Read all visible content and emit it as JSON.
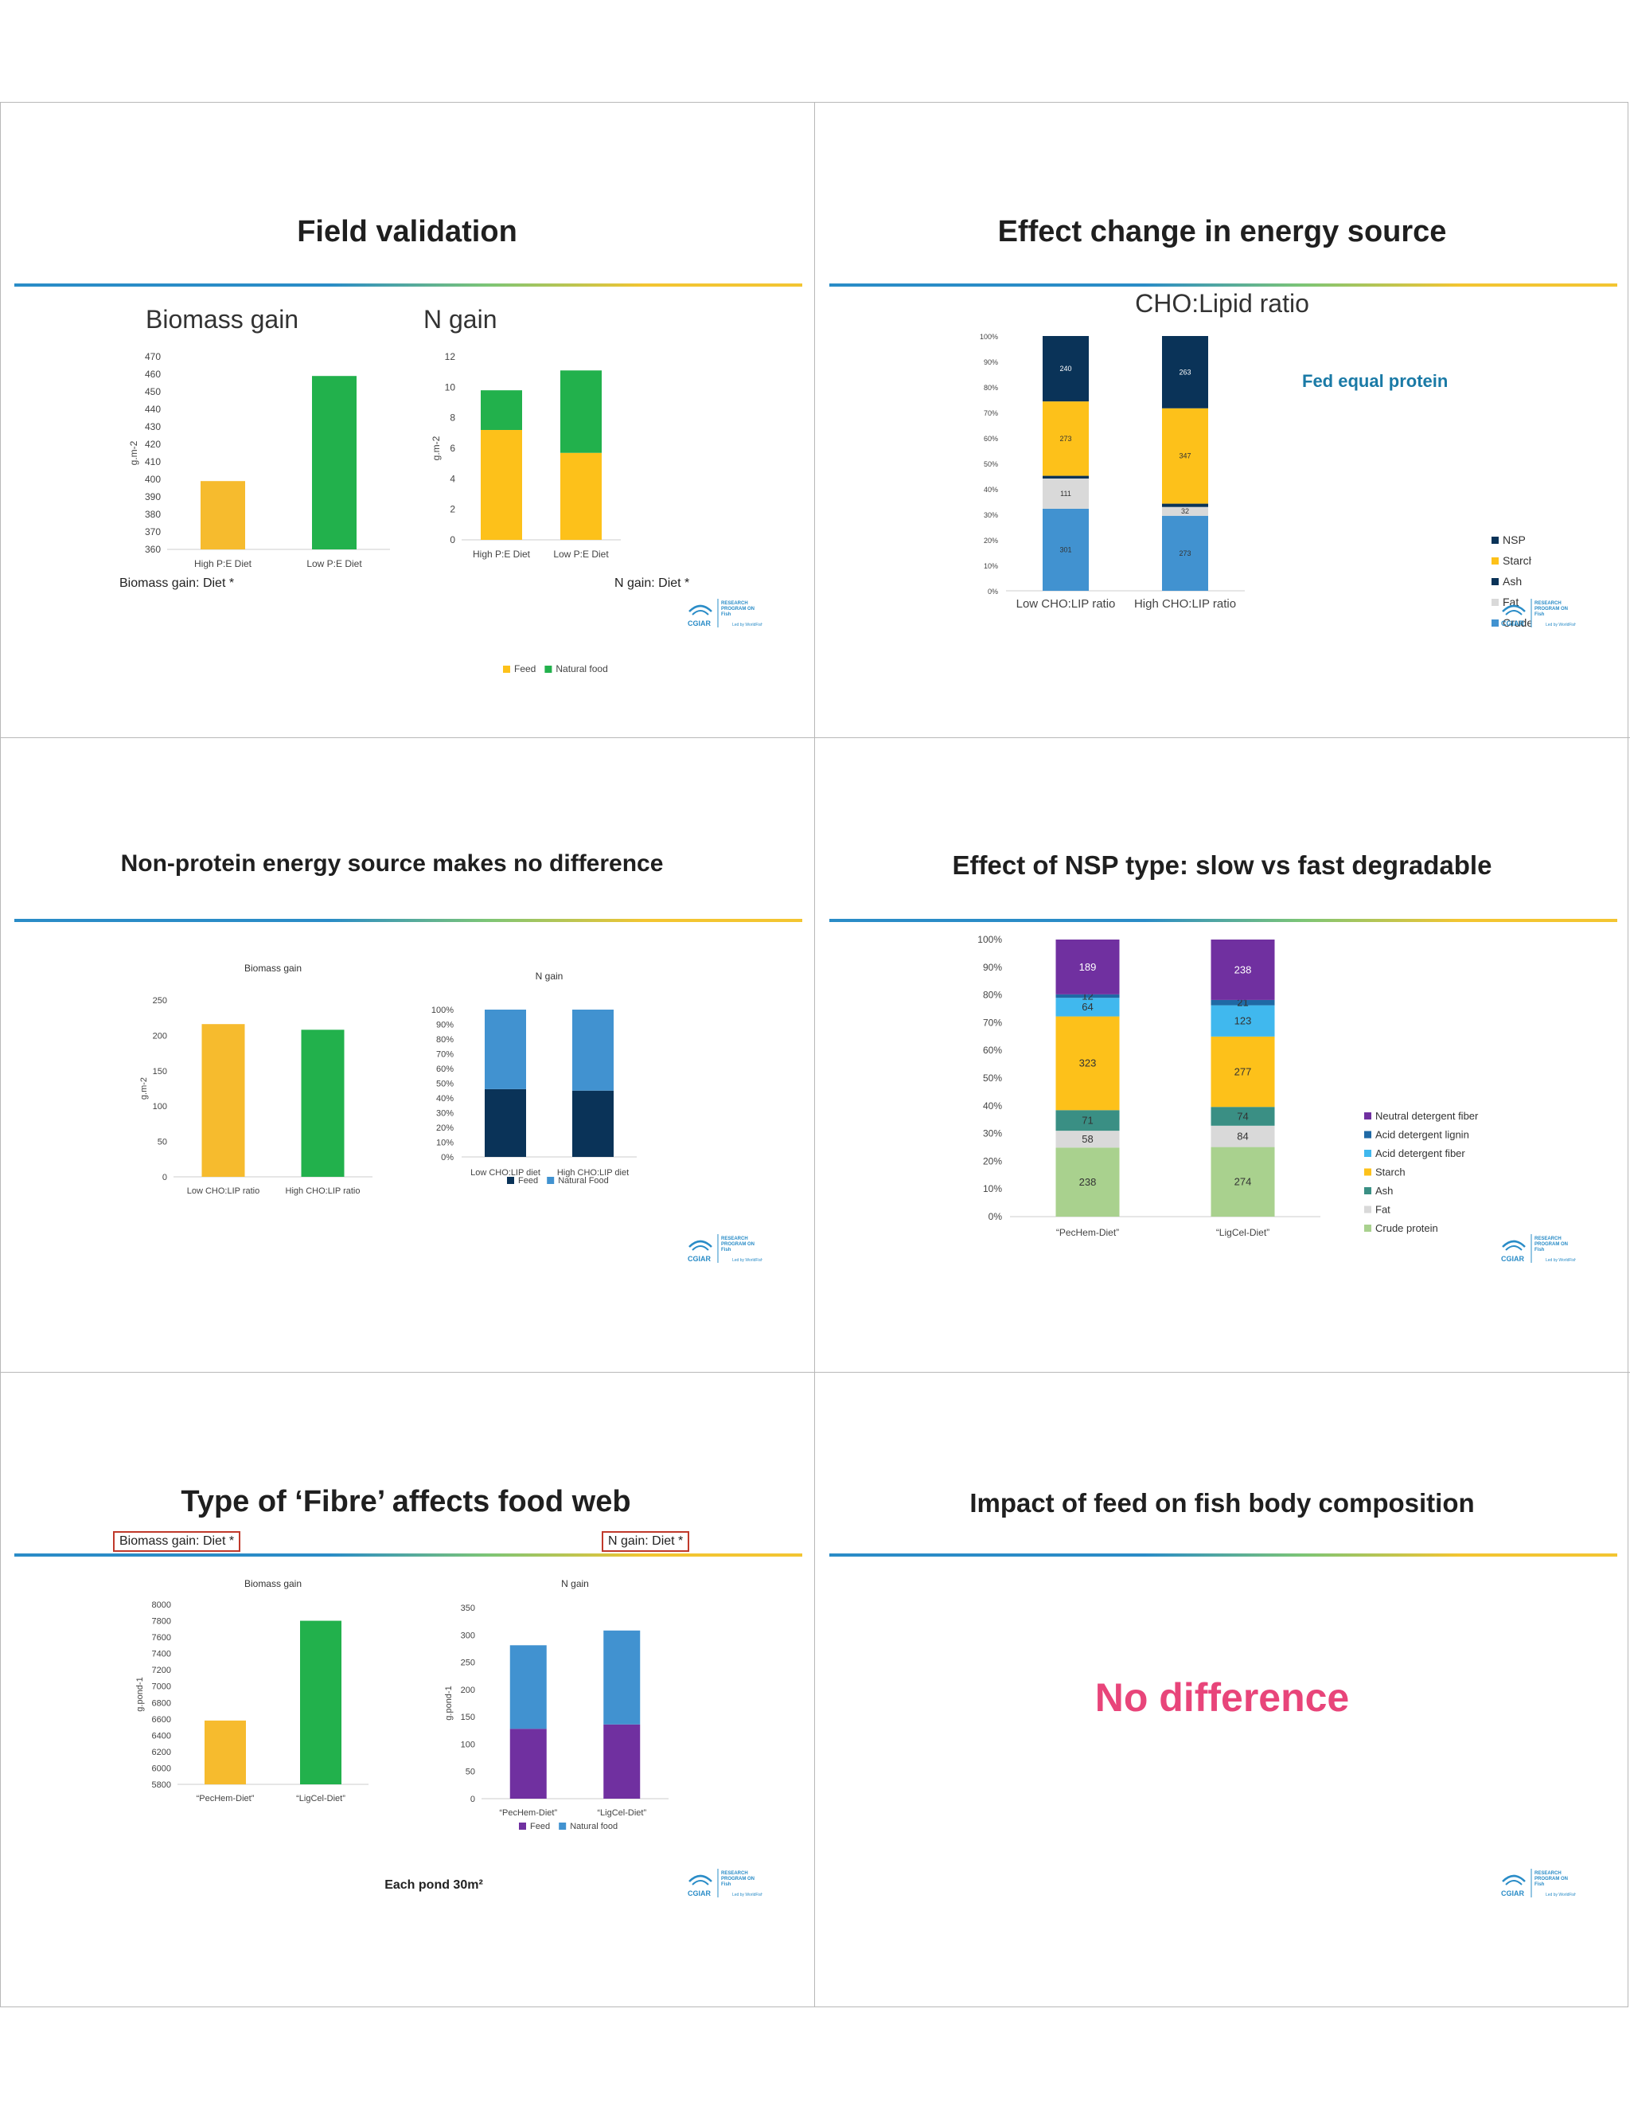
{
  "colors": {
    "orange": "#F6BB2E",
    "green": "#22B14C",
    "yellow": "#FDC11A",
    "navy": "#0A3358",
    "blue": "#4192D0",
    "lightblue": "#40B8EE",
    "grey": "#D9D9D9",
    "purple": "#7030A0",
    "darkpurple": "#1A2455",
    "teal": "#3A8F84",
    "lightgreen": "#A9D18E",
    "pink": "#E8457A",
    "accentblue": "#1A7AA6"
  },
  "logo": {
    "name": "CGIAR",
    "lines": [
      "RESEARCH",
      "PROGRAM ON",
      "Fish"
    ],
    "tagline": "Led by WorldFish"
  },
  "slides": {
    "s1": {
      "title": "Field validation",
      "note1": "Biomass gain: Diet *",
      "note2": "N gain: Diet *"
    },
    "s2": {
      "title": "Effect change in energy source",
      "subtitle": "CHO:Lipid ratio",
      "callout": "Fed equal protein"
    },
    "s3": {
      "title": "Non-protein energy source makes no difference"
    },
    "s4": {
      "title": "Effect of NSP type: slow vs fast degradable"
    },
    "s5": {
      "title": "Type of ‘Fibre’ affects food web",
      "box1": "Biomass gain: Diet *",
      "box2": "N gain: Diet *",
      "footnote": "Each pond 30m²"
    },
    "s6": {
      "title": "Impact of feed on fish body composition",
      "message": "No difference"
    }
  },
  "chart_data": [
    {
      "id": "c1a",
      "type": "bar",
      "title": "Biomass gain",
      "ylabel": "g.m-2",
      "categories": [
        "High P:E Diet",
        "Low P:E Diet"
      ],
      "values": [
        399,
        459
      ],
      "ylim": [
        360,
        470
      ],
      "ticks": [
        360,
        370,
        380,
        390,
        400,
        410,
        420,
        430,
        440,
        450,
        460,
        470
      ]
    },
    {
      "id": "c1b",
      "type": "bar",
      "stacked": true,
      "title": "N gain",
      "ylabel": "g.m-2",
      "categories": [
        "High P:E Diet",
        "Low P:E Diet"
      ],
      "series": [
        {
          "name": "Feed",
          "values": [
            7.2,
            5.7
          ]
        },
        {
          "name": "Natural food",
          "values": [
            2.6,
            5.4
          ]
        }
      ],
      "ylim": [
        0,
        12
      ],
      "ticks": [
        0,
        2,
        4,
        6,
        8,
        10,
        12
      ]
    },
    {
      "id": "c2",
      "type": "bar",
      "stacked": true,
      "percent": true,
      "categories": [
        "Low CHO:LIP ratio",
        "High CHO:LIP ratio"
      ],
      "series": [
        {
          "name": "Crude Protein",
          "values": [
            301,
            273
          ],
          "labels": [
            "301",
            "273"
          ]
        },
        {
          "name": "Fat",
          "values": [
            111,
            32
          ],
          "labels": [
            "111",
            "32"
          ]
        },
        {
          "name": "Ash",
          "values": [
            10,
            12
          ],
          "labels": [
            "",
            ""
          ]
        },
        {
          "name": "Starch",
          "values": [
            273,
            347
          ],
          "labels": [
            "273",
            "347"
          ]
        },
        {
          "name": "NSP",
          "values": [
            240,
            263
          ],
          "labels": [
            "240",
            "263"
          ]
        }
      ],
      "ticks": [
        "0%",
        "10%",
        "20%",
        "30%",
        "40%",
        "50%",
        "60%",
        "70%",
        "80%",
        "90%",
        "100%"
      ]
    },
    {
      "id": "c3a",
      "type": "bar",
      "title": "Biomass gain",
      "ylabel": "g.m-2",
      "categories": [
        "Low CHO:LIP ratio",
        "High CHO:LIP ratio"
      ],
      "values": [
        216,
        208
      ],
      "ylim": [
        0,
        250
      ],
      "ticks": [
        0,
        50,
        100,
        150,
        200,
        250
      ]
    },
    {
      "id": "c3b",
      "type": "bar",
      "stacked": true,
      "percent": true,
      "title": "N gain",
      "categories": [
        "Low CHO:LIP diet",
        "High CHO:LIP diet"
      ],
      "series": [
        {
          "name": "Feed",
          "values": [
            46,
            45
          ]
        },
        {
          "name": "Natural Food",
          "values": [
            54,
            55
          ]
        }
      ],
      "ticks": [
        "0%",
        "10%",
        "20%",
        "30%",
        "40%",
        "50%",
        "60%",
        "70%",
        "80%",
        "90%",
        "100%"
      ]
    },
    {
      "id": "c4",
      "type": "bar",
      "stacked": true,
      "percent": true,
      "categories": [
        "“PecHem-Diet”",
        "“LigCel-Diet”"
      ],
      "series": [
        {
          "name": "Crude protein",
          "values": [
            238,
            274
          ],
          "labels": [
            "238",
            "274"
          ]
        },
        {
          "name": "Fat",
          "values": [
            58,
            84
          ],
          "labels": [
            "58",
            "84"
          ]
        },
        {
          "name": "Ash",
          "values": [
            71,
            74
          ],
          "labels": [
            "71",
            "74"
          ]
        },
        {
          "name": "Starch",
          "values": [
            323,
            277
          ],
          "labels": [
            "323",
            "277"
          ]
        },
        {
          "name": "Acid detergent fiber",
          "values": [
            64,
            123
          ],
          "labels": [
            "64",
            "123"
          ]
        },
        {
          "name": "Acid detergent lignin",
          "values": [
            12,
            21
          ],
          "labels": [
            "12",
            "21"
          ]
        },
        {
          "name": "Neutral detergent fiber",
          "values": [
            189,
            238
          ],
          "labels": [
            "189",
            "238"
          ]
        }
      ],
      "ticks": [
        "0%",
        "10%",
        "20%",
        "30%",
        "40%",
        "50%",
        "60%",
        "70%",
        "80%",
        "90%",
        "100%"
      ]
    },
    {
      "id": "c5a",
      "type": "bar",
      "title": "Biomass gain",
      "ylabel": "g.pond-1",
      "categories": [
        "“PecHem-Diet”",
        "“LigCel-Diet”"
      ],
      "values": [
        6580,
        7800
      ],
      "ylim": [
        5800,
        8000
      ],
      "ticks": [
        5800,
        6000,
        6200,
        6400,
        6600,
        6800,
        7000,
        7200,
        7400,
        7600,
        7800,
        8000
      ]
    },
    {
      "id": "c5b",
      "type": "bar",
      "stacked": true,
      "title": "N gain",
      "ylabel": "g.pond-1",
      "categories": [
        "“PecHem-Diet”",
        "“LigCel-Diet”"
      ],
      "series": [
        {
          "name": "Feed",
          "values": [
            128,
            136
          ]
        },
        {
          "name": "Natural food",
          "values": [
            153,
            172
          ]
        }
      ],
      "ylim": [
        0,
        350
      ],
      "ticks": [
        0,
        50,
        100,
        150,
        200,
        250,
        300,
        350
      ]
    }
  ]
}
